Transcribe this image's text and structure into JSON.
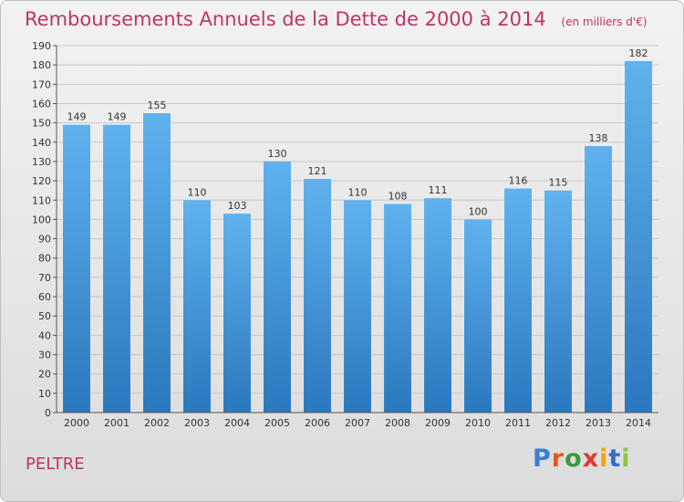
{
  "chart_data": {
    "type": "bar",
    "title": "Remboursements Annuels de la Dette de 2000 à 2014",
    "subtitle": "(en milliers d'€)",
    "categories": [
      "2000",
      "2001",
      "2002",
      "2003",
      "2004",
      "2005",
      "2006",
      "2007",
      "2008",
      "2009",
      "2010",
      "2011",
      "2012",
      "2013",
      "2014"
    ],
    "values": [
      149,
      149,
      155,
      110,
      103,
      130,
      121,
      110,
      108,
      111,
      100,
      116,
      115,
      138,
      182
    ],
    "xlabel": "",
    "ylabel": "",
    "ylim": [
      0,
      190
    ],
    "ytick_step": 10,
    "grid": true,
    "bar_color": "#3a8fd6"
  },
  "footer": {
    "commune": "PELTRE"
  },
  "logo": {
    "text": "Proxiti"
  }
}
